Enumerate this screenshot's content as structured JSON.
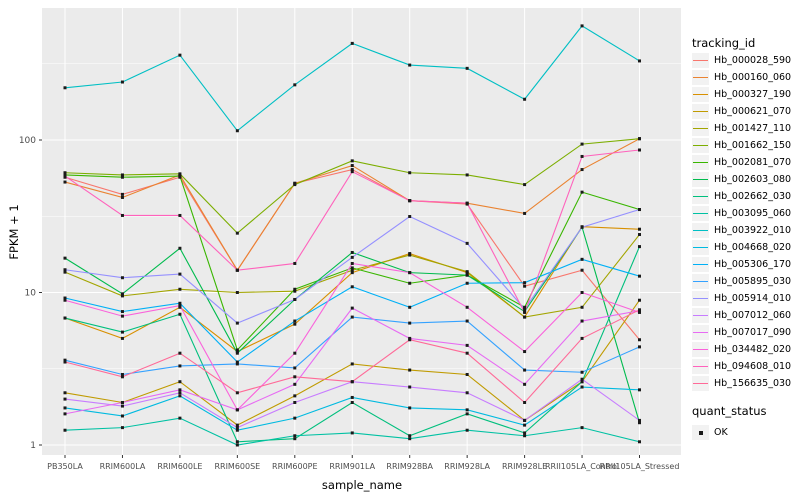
{
  "figure": {
    "background": "#FFFFFF",
    "panel_background": "#EBEBEB",
    "gridline_color": "#FFFFFF",
    "tick_label_color": "#4D4D4D",
    "tick_mark_color": "#333333",
    "point_color": "#1A1A1A",
    "legend_key_background": "#F2F2F2"
  },
  "chart_data": {
    "type": "line",
    "title": "",
    "xlabel": "sample_name",
    "ylabel": "FPKM + 1",
    "y_scale": "log10",
    "y_ticks": [
      1,
      10,
      100
    ],
    "y_minor_ticks": [
      3.1623,
      31.623,
      316.23
    ],
    "ylim": [
      0.87,
      735
    ],
    "grid": true,
    "marker": "square",
    "legend_position": "right",
    "legend_title": "tracking_id",
    "legend2_title": "quant_status",
    "legend2_items": [
      {
        "label": "OK",
        "marker": "black-square"
      }
    ],
    "categories": [
      "PB350LA",
      "RRIM600LA",
      "RRIM600LE",
      "RRIM600SE",
      "RRIM600PE",
      "RRIM901LA",
      "RRIM928BA",
      "RRIM928LA",
      "RRIM928LE",
      "RRII105LA_Control",
      "RRII105LA_Stressed"
    ],
    "series": [
      {
        "name": "Hb_000028_590",
        "color": "#F8766D",
        "values": [
          57,
          44,
          57,
          14,
          52,
          64,
          40,
          38,
          11,
          14,
          4.9
        ]
      },
      {
        "name": "Hb_000160_060",
        "color": "#EA8331",
        "values": [
          53,
          42,
          59,
          14,
          52,
          68,
          40,
          38.5,
          33,
          64,
          102
        ]
      },
      {
        "name": "Hb_000327_190",
        "color": "#D89000",
        "values": [
          6.8,
          5.0,
          8.0,
          4.1,
          6.2,
          13.5,
          18,
          13.5,
          6.9,
          27,
          26
        ]
      },
      {
        "name": "Hb_000621_070",
        "color": "#C09B00",
        "values": [
          2.2,
          1.9,
          2.6,
          1.35,
          2.1,
          3.4,
          3.1,
          2.9,
          1.45,
          2.6,
          8.9
        ]
      },
      {
        "name": "Hb_001427_110",
        "color": "#A3A500",
        "values": [
          13.6,
          9.5,
          10.5,
          10,
          10.2,
          14,
          17.6,
          13.7,
          6.9,
          8,
          24
        ]
      },
      {
        "name": "Hb_001662_150",
        "color": "#7CAE00",
        "values": [
          61,
          59,
          60,
          24.5,
          51,
          73,
          61,
          59,
          51,
          94,
          102
        ]
      },
      {
        "name": "Hb_002081_070",
        "color": "#39B600",
        "values": [
          59,
          57,
          58,
          4.2,
          10.5,
          14.5,
          11.5,
          13,
          8,
          45.5,
          35
        ]
      },
      {
        "name": "Hb_002603_080",
        "color": "#00BB4E",
        "values": [
          16.8,
          9.8,
          19.5,
          4.0,
          9.0,
          18.3,
          13.5,
          13,
          7.5,
          26.8,
          1.4
        ]
      },
      {
        "name": "Hb_002662_030",
        "color": "#00BF7D",
        "values": [
          6.8,
          5.5,
          7.2,
          1.05,
          1.1,
          1.9,
          1.15,
          1.6,
          1.2,
          2.6,
          20
        ]
      },
      {
        "name": "Hb_003095_060",
        "color": "#00C1A3",
        "values": [
          1.25,
          1.3,
          1.5,
          1.0,
          1.15,
          1.2,
          1.1,
          1.25,
          1.15,
          1.3,
          1.05
        ]
      },
      {
        "name": "Hb_003922_010",
        "color": "#00BFC4",
        "values": [
          220,
          240,
          360,
          115,
          230,
          430,
          310,
          295,
          185,
          560,
          330
        ]
      },
      {
        "name": "Hb_004668_020",
        "color": "#00BAE0",
        "values": [
          1.75,
          1.55,
          2.1,
          1.25,
          1.5,
          2.05,
          1.75,
          1.7,
          1.35,
          2.4,
          2.3
        ]
      },
      {
        "name": "Hb_005306_170",
        "color": "#00B0F6",
        "values": [
          9.2,
          7.5,
          8.5,
          3.5,
          6.5,
          10.9,
          8.0,
          11.5,
          11.6,
          16.5,
          12.8
        ]
      },
      {
        "name": "Hb_005895_030",
        "color": "#35A2FF",
        "values": [
          3.6,
          2.9,
          3.3,
          3.4,
          3.2,
          6.9,
          6.3,
          6.5,
          3.1,
          3.0,
          4.4
        ]
      },
      {
        "name": "Hb_005914_010",
        "color": "#9590FF",
        "values": [
          14.1,
          12.5,
          13.2,
          6.3,
          9.0,
          17,
          31.5,
          21,
          7.8,
          26.8,
          35
        ]
      },
      {
        "name": "Hb_007012_060",
        "color": "#C77CFF",
        "values": [
          2.0,
          1.8,
          2.2,
          1.3,
          1.9,
          2.6,
          2.4,
          2.2,
          1.45,
          2.7,
          1.45
        ]
      },
      {
        "name": "Hb_007017_090",
        "color": "#E76BF3",
        "values": [
          1.6,
          1.9,
          2.3,
          1.7,
          2.5,
          7.9,
          5.0,
          4.5,
          2.5,
          6.5,
          7.6
        ]
      },
      {
        "name": "Hb_034482_020",
        "color": "#FA62DB",
        "values": [
          8.9,
          7.0,
          8.2,
          1.7,
          4.0,
          15.5,
          13.5,
          8.0,
          4.1,
          10,
          7.4
        ]
      },
      {
        "name": "Hb_094608_010",
        "color": "#FF62BC",
        "values": [
          58,
          32,
          32,
          14,
          15.5,
          62,
          40,
          38.5,
          7.4,
          78,
          86
        ]
      },
      {
        "name": "Hb_156635_030",
        "color": "#FF6A98",
        "values": [
          3.5,
          2.8,
          4.0,
          2.2,
          2.8,
          2.6,
          4.9,
          4.0,
          1.9,
          5.0,
          7.7
        ]
      }
    ]
  }
}
